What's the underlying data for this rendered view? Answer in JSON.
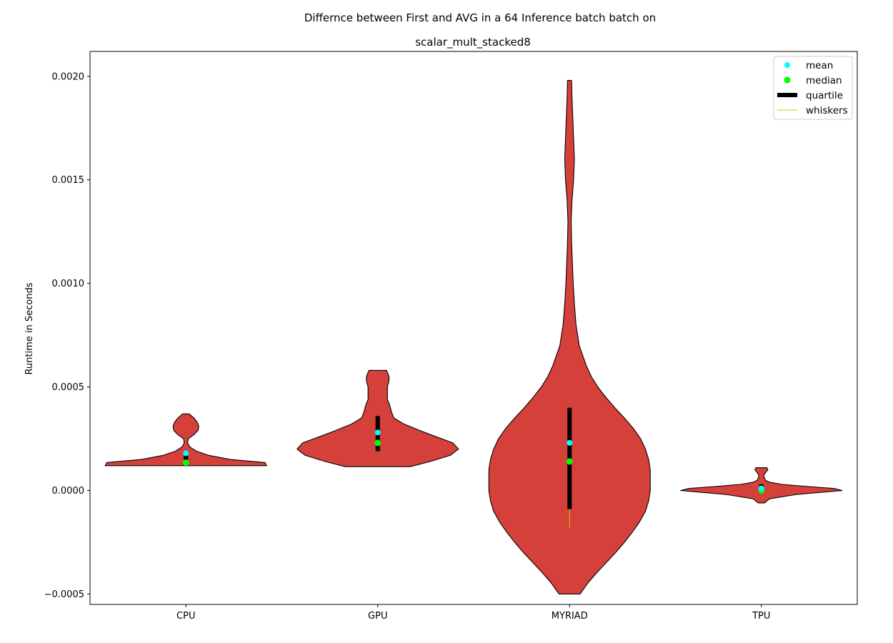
{
  "chart_data": {
    "type": "violin",
    "title_line1": "Differnce between First and AVG in a 64 Inference batch batch on",
    "title_line2": "scalar_mult_stacked8",
    "xlabel": "",
    "ylabel": "Runtime in Seconds",
    "ylim": [
      -0.00055,
      0.00212
    ],
    "yticks": [
      {
        "value": -0.0005,
        "label": "−0.0005"
      },
      {
        "value": 0.0,
        "label": "0.0000"
      },
      {
        "value": 0.0005,
        "label": "0.0005"
      },
      {
        "value": 0.001,
        "label": "0.0010"
      },
      {
        "value": 0.0015,
        "label": "0.0015"
      },
      {
        "value": 0.002,
        "label": "0.0020"
      }
    ],
    "categories": [
      "CPU",
      "GPU",
      "MYRIAD",
      "TPU"
    ],
    "violin_color": "#d5403a",
    "colors": {
      "mean": "#00ffff",
      "median": "#00ff00",
      "quartile": "#000000",
      "whiskers": "#cccc00"
    },
    "legend_position": "top-right",
    "legend": [
      "mean",
      "median",
      "quartile",
      "whiskers"
    ],
    "series": [
      {
        "name": "CPU",
        "min": 0.00012,
        "max": 0.00037,
        "q1": 0.00012,
        "q3": 0.00019,
        "whisker_low": 0.00012,
        "whisker_high": 0.00019,
        "mean": 0.00018,
        "median": 0.000135,
        "density": [
          [
            0.00012,
            1.0
          ],
          [
            0.000135,
            0.98
          ],
          [
            0.00015,
            0.55
          ],
          [
            0.00017,
            0.28
          ],
          [
            0.00019,
            0.13
          ],
          [
            0.00021,
            0.05
          ],
          [
            0.00023,
            0.02
          ],
          [
            0.00025,
            0.03
          ],
          [
            0.00027,
            0.1
          ],
          [
            0.00029,
            0.15
          ],
          [
            0.00031,
            0.16
          ],
          [
            0.00033,
            0.14
          ],
          [
            0.00035,
            0.1
          ],
          [
            0.00037,
            0.04
          ]
        ]
      },
      {
        "name": "GPU",
        "min": 0.000115,
        "max": 0.00058,
        "q1": 0.00019,
        "q3": 0.00036,
        "whisker_low": 0.00019,
        "whisker_high": 0.00036,
        "mean": 0.00028,
        "median": 0.00023,
        "density": [
          [
            0.000115,
            0.4
          ],
          [
            0.00014,
            0.65
          ],
          [
            0.00017,
            0.9
          ],
          [
            0.0002,
            1.0
          ],
          [
            0.00023,
            0.93
          ],
          [
            0.00026,
            0.72
          ],
          [
            0.00029,
            0.52
          ],
          [
            0.00032,
            0.33
          ],
          [
            0.00035,
            0.2
          ],
          [
            0.00038,
            0.17
          ],
          [
            0.00041,
            0.15
          ],
          [
            0.00044,
            0.12
          ],
          [
            0.00047,
            0.12
          ],
          [
            0.0005,
            0.12
          ],
          [
            0.00053,
            0.14
          ],
          [
            0.00055,
            0.14
          ],
          [
            0.00058,
            0.11
          ]
        ]
      },
      {
        "name": "MYRIAD",
        "min": -0.0005,
        "max": 0.00198,
        "q1": -9e-05,
        "q3": 0.0004,
        "whisker_low": -0.00018,
        "whisker_high": 0.0004,
        "mean": 0.00023,
        "median": 0.00014,
        "density": [
          [
            -0.0005,
            0.13
          ],
          [
            -0.00045,
            0.22
          ],
          [
            -0.0004,
            0.33
          ],
          [
            -0.00035,
            0.45
          ],
          [
            -0.0003,
            0.57
          ],
          [
            -0.00025,
            0.68
          ],
          [
            -0.0002,
            0.78
          ],
          [
            -0.00015,
            0.87
          ],
          [
            -0.0001,
            0.94
          ],
          [
            -5e-05,
            0.98
          ],
          [
            0.0,
            1.0
          ],
          [
            5e-05,
            1.0
          ],
          [
            0.0001,
            1.0
          ],
          [
            0.00015,
            0.98
          ],
          [
            0.0002,
            0.94
          ],
          [
            0.00025,
            0.88
          ],
          [
            0.0003,
            0.79
          ],
          [
            0.00035,
            0.68
          ],
          [
            0.0004,
            0.56
          ],
          [
            0.00045,
            0.45
          ],
          [
            0.0005,
            0.35
          ],
          [
            0.00055,
            0.27
          ],
          [
            0.0006,
            0.21
          ],
          [
            0.0007,
            0.12
          ],
          [
            0.0008,
            0.08
          ],
          [
            0.0009,
            0.06
          ],
          [
            0.001,
            0.045
          ],
          [
            0.0011,
            0.035
          ],
          [
            0.0012,
            0.025
          ],
          [
            0.0013,
            0.02
          ],
          [
            0.0014,
            0.03
          ],
          [
            0.0015,
            0.05
          ],
          [
            0.0016,
            0.06
          ],
          [
            0.0017,
            0.05
          ],
          [
            0.0018,
            0.04
          ],
          [
            0.0019,
            0.03
          ],
          [
            0.00198,
            0.025
          ]
        ]
      },
      {
        "name": "TPU",
        "min": -6e-05,
        "max": 0.00011,
        "q1": 0.0,
        "q3": 3e-05,
        "whisker_low": 0.0,
        "whisker_high": 3e-05,
        "mean": 1e-05,
        "median": 0.0,
        "density": [
          [
            -6e-05,
            0.04
          ],
          [
            -4e-05,
            0.1
          ],
          [
            -2e-05,
            0.42
          ],
          [
            0.0,
            1.0
          ],
          [
            1e-05,
            0.9
          ],
          [
            2e-05,
            0.55
          ],
          [
            3e-05,
            0.25
          ],
          [
            4e-05,
            0.1
          ],
          [
            5e-05,
            0.05
          ],
          [
            6e-05,
            0.04
          ],
          [
            7e-05,
            0.03
          ],
          [
            8e-05,
            0.04
          ],
          [
            9e-05,
            0.06
          ],
          [
            0.0001,
            0.08
          ],
          [
            0.00011,
            0.07
          ]
        ]
      }
    ]
  }
}
